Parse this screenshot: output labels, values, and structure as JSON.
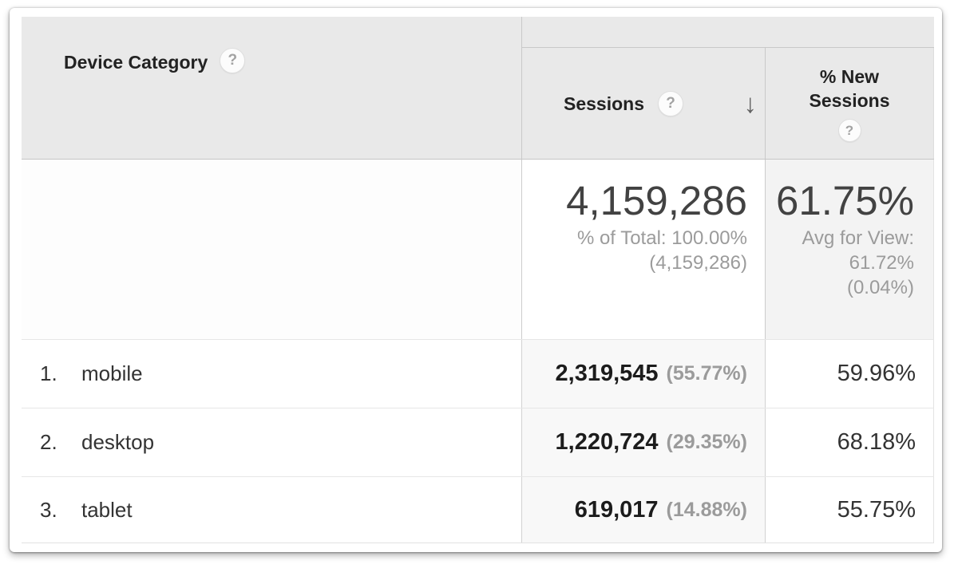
{
  "icons": {
    "help": "?",
    "sort_descending": "↓"
  },
  "colors": {
    "header_bg": "#e9e9e9",
    "sorted_column_cell_bg": "#f8f8f8",
    "totals_secondary_cell_bg": "#f3f3f3",
    "divider": "#c9c9c9",
    "row_border": "#e6e6e6",
    "muted_text": "#9b9b9b",
    "primary_text": "#333333"
  },
  "table": {
    "dimension_header": {
      "label": "Device Category"
    },
    "metric_headers": {
      "sessions": {
        "label": "Sessions",
        "sort": "descending"
      },
      "new_sessions": {
        "label": "% New\nSessions"
      }
    },
    "totals": {
      "sessions": {
        "value": "4,159,286",
        "sub": "% of Total: 100.00%\n(4,159,286)"
      },
      "new_sessions": {
        "value": "61.75%",
        "sub": "Avg for View:\n61.72%\n(0.04%)"
      }
    },
    "rows": [
      {
        "index": "1.",
        "device": "mobile",
        "sessions": "2,319,545",
        "sessions_pct": "(55.77%)",
        "new_sessions": "59.96%"
      },
      {
        "index": "2.",
        "device": "desktop",
        "sessions": "1,220,724",
        "sessions_pct": "(29.35%)",
        "new_sessions": "68.18%"
      },
      {
        "index": "3.",
        "device": "tablet",
        "sessions": "619,017",
        "sessions_pct": "(14.88%)",
        "new_sessions": "55.75%"
      }
    ]
  }
}
